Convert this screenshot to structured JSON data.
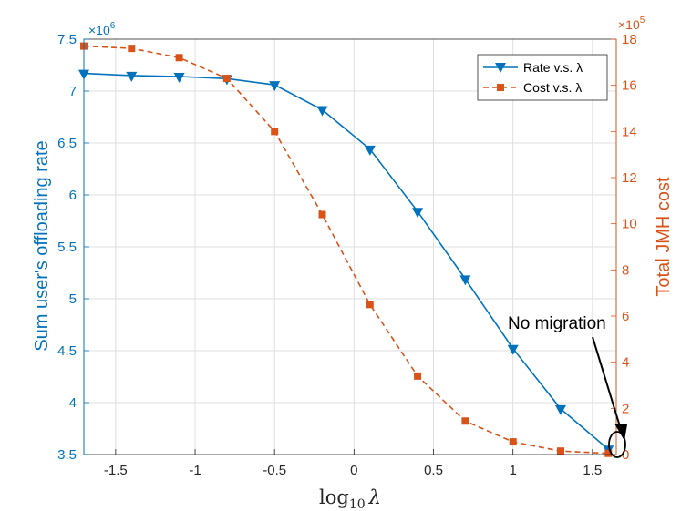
{
  "chart_data": {
    "type": "line",
    "x": [
      -1.7,
      -1.4,
      -1.1,
      -0.8,
      -0.5,
      -0.2,
      0.1,
      0.4,
      0.7,
      1.0,
      1.3,
      1.6
    ],
    "xlabel": "log",
    "xlabel_sub": "10",
    "xlabel_var": "λ",
    "xlim": [
      -1.7,
      1.65
    ],
    "xticks": [
      -1.5,
      -1,
      -0.5,
      0,
      0.5,
      1,
      1.5
    ],
    "xtick_labels": [
      "-1.5",
      "-1",
      "-0.5",
      "0",
      "0.5",
      "1",
      "1.5"
    ],
    "grid": true,
    "left_axis": {
      "label": "Sum user's offloading rate",
      "multiplier": "×10",
      "multiplier_exp": "6",
      "ylim": [
        3.5,
        7.5
      ],
      "ticks": [
        3.5,
        4,
        4.5,
        5,
        5.5,
        6,
        6.5,
        7,
        7.5
      ],
      "tick_labels": [
        "3.5",
        "4",
        "4.5",
        "5",
        "5.5",
        "6",
        "6.5",
        "7",
        "7.5"
      ]
    },
    "right_axis": {
      "label": "Total JMH cost",
      "multiplier": "×10",
      "multiplier_exp": "5",
      "ylim": [
        0,
        18
      ],
      "ticks": [
        0,
        2,
        4,
        6,
        8,
        10,
        12,
        14,
        16,
        18
      ],
      "tick_labels": [
        "0",
        "2",
        "4",
        "6",
        "8",
        "10",
        "12",
        "14",
        "16",
        "18"
      ]
    },
    "series": [
      {
        "name": "Rate v.s. λ",
        "axis": "left",
        "color": "#0072BD",
        "marker": "triangle-down",
        "line": "solid",
        "values": [
          7.17,
          7.15,
          7.14,
          7.12,
          7.06,
          6.82,
          6.44,
          5.84,
          5.19,
          4.52,
          3.94,
          3.55
        ]
      },
      {
        "name": "Cost v.s. λ",
        "axis": "right",
        "color": "#D95319",
        "marker": "square",
        "line": "dashed",
        "values": [
          17.7,
          17.6,
          17.2,
          16.3,
          14.0,
          10.4,
          6.5,
          3.4,
          1.45,
          0.55,
          0.15,
          0.05
        ]
      }
    ],
    "annotation": {
      "text": "No migration",
      "points_to_x": 1.6
    },
    "legend_position": "top-right"
  }
}
